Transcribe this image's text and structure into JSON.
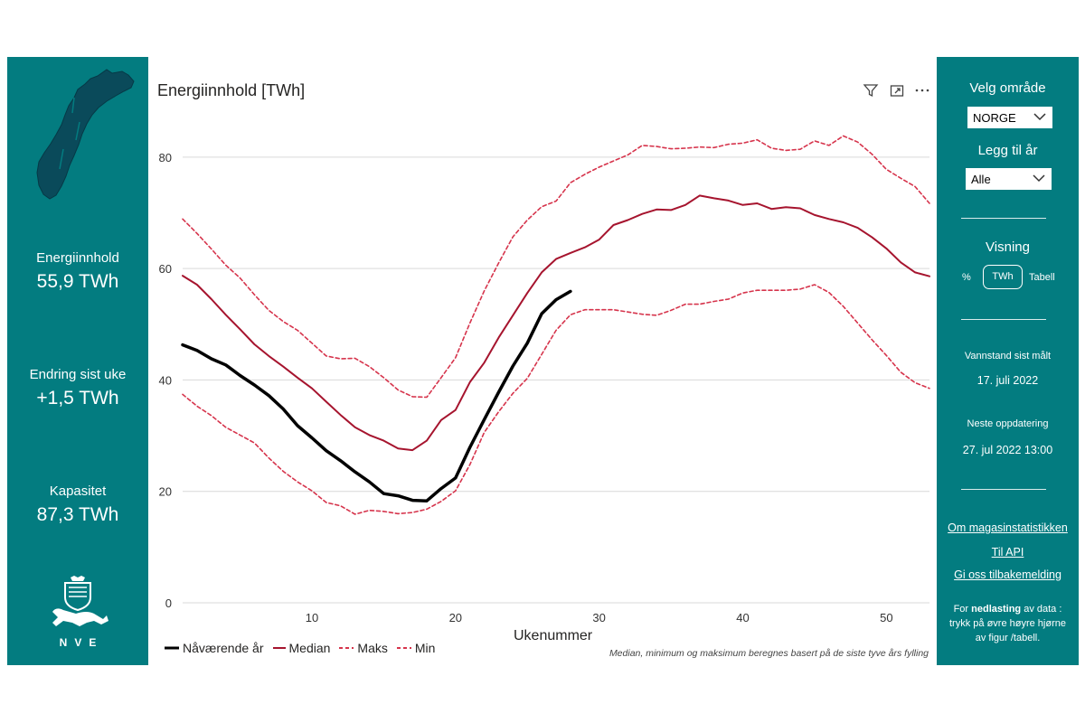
{
  "kpis": [
    {
      "label": "Energiinnhold",
      "value": "55,9 TWh"
    },
    {
      "label": "Endring sist uke",
      "value": "+1,5 TWh"
    },
    {
      "label": "Kapasitet",
      "value": "87,3 TWh"
    }
  ],
  "logo_text": "NVE",
  "chart_title": "Energiinnhold [TWh]",
  "footnote": "Median, minimum og maksimum beregnes basert på de siste tyve års fylling",
  "icons": [
    "filter-icon",
    "focus-mode-icon",
    "more-options-icon",
    "norway-map-icon",
    "nve-crest-icon",
    "chevron-down-icon"
  ],
  "colors": {
    "panel": "#037c80",
    "current": "#000000",
    "median": "#a6142e",
    "band": "#d6344c"
  },
  "right_panel": {
    "area_label": "Velg område",
    "area_value": "NORGE",
    "year_label": "Legg til år",
    "year_value": "Alle",
    "view_label": "Visning",
    "view_pct": "%",
    "view_twh": "TWh",
    "view_table": "Tabell",
    "measured_label": "Vannstand sist målt",
    "measured_date": "17. juli 2022",
    "next_label": "Neste oppdatering",
    "next_date": "27. jul 2022 13:00",
    "links": [
      "Om magasinstatistikken",
      "Til API",
      "Gi oss tilbakemelding"
    ],
    "download_note_pre": "For ",
    "download_note_bold": "nedlasting",
    "download_note_post": " av data : trykk på øvre høyre hjørne av figur /tabell."
  },
  "chart_data": {
    "type": "line",
    "title": "Energiinnhold [TWh]",
    "xlabel": "Ukenummer",
    "ylabel": "",
    "xlim": [
      1,
      53
    ],
    "ylim": [
      0,
      85
    ],
    "xticks": [
      10,
      20,
      30,
      40,
      50
    ],
    "yticks": [
      0,
      20,
      40,
      60,
      80
    ],
    "grid": "horizontal",
    "legend": "bottom-left",
    "series": [
      {
        "name": "Nåværende år",
        "style": "solid-thick",
        "color": "#000000",
        "x": [
          1,
          2,
          3,
          4,
          5,
          6,
          7,
          8,
          9,
          10,
          11,
          12,
          13,
          14,
          15,
          16,
          17,
          18,
          19,
          20,
          21,
          22,
          23,
          24,
          25,
          26,
          27,
          28
        ],
        "values": [
          46.3,
          45.3,
          43.8,
          42.7,
          40.8,
          39.1,
          37.2,
          34.8,
          31.8,
          29.6,
          27.3,
          25.5,
          23.5,
          21.7,
          19.6,
          19.2,
          18.4,
          18.3,
          20.5,
          22.4,
          27.9,
          32.9,
          37.8,
          42.5,
          46.6,
          51.9,
          54.4,
          55.9
        ]
      },
      {
        "name": "Median",
        "style": "solid",
        "color": "#a6142e",
        "x": [
          1,
          2,
          3,
          4,
          5,
          6,
          7,
          8,
          9,
          10,
          11,
          12,
          13,
          14,
          15,
          16,
          17,
          18,
          19,
          20,
          21,
          22,
          23,
          24,
          25,
          26,
          27,
          28,
          29,
          30,
          31,
          32,
          33,
          34,
          35,
          36,
          37,
          38,
          39,
          40,
          41,
          42,
          43,
          44,
          45,
          46,
          47,
          48,
          49,
          50,
          51,
          52,
          53
        ],
        "values": [
          58.7,
          57.1,
          54.5,
          51.7,
          49.1,
          46.4,
          44.3,
          42.4,
          40.4,
          38.5,
          36.1,
          33.7,
          31.5,
          30.1,
          29.1,
          27.7,
          27.4,
          29.1,
          32.8,
          34.6,
          39.6,
          43.1,
          47.6,
          51.6,
          55.6,
          59.3,
          61.7,
          62.8,
          63.8,
          65.2,
          67.8,
          68.7,
          69.8,
          70.6,
          70.5,
          71.4,
          73.1,
          72.6,
          72.2,
          71.4,
          71.7,
          70.7,
          71.0,
          70.8,
          69.6,
          68.9,
          68.3,
          67.3,
          65.6,
          63.6,
          61.1,
          59.3,
          58.6
        ]
      },
      {
        "name": "Maks",
        "style": "dashed",
        "color": "#d6344c",
        "x": [
          1,
          2,
          3,
          4,
          5,
          6,
          7,
          8,
          9,
          10,
          11,
          12,
          13,
          14,
          15,
          16,
          17,
          18,
          19,
          20,
          21,
          22,
          23,
          24,
          25,
          26,
          27,
          28,
          29,
          30,
          31,
          32,
          33,
          34,
          35,
          36,
          37,
          38,
          39,
          40,
          41,
          42,
          43,
          44,
          45,
          46,
          47,
          48,
          49,
          50,
          51,
          52,
          53
        ],
        "values": [
          68.9,
          66.3,
          63.5,
          60.6,
          58.3,
          55.3,
          52.5,
          50.5,
          48.9,
          46.6,
          44.3,
          43.8,
          43.9,
          42.4,
          40.4,
          38.2,
          37.0,
          36.9,
          40.4,
          44.0,
          50.2,
          56.0,
          61.0,
          65.7,
          68.7,
          71.1,
          72.1,
          75.4,
          76.9,
          78.2,
          79.3,
          80.4,
          82.1,
          81.9,
          81.5,
          81.6,
          81.8,
          81.7,
          82.3,
          82.5,
          83.1,
          81.6,
          81.2,
          81.4,
          82.9,
          82.1,
          83.8,
          82.7,
          80.5,
          77.8,
          76.2,
          74.7,
          71.7
        ]
      },
      {
        "name": "Min",
        "style": "dashed",
        "color": "#d6344c",
        "x": [
          1,
          2,
          3,
          4,
          5,
          6,
          7,
          8,
          9,
          10,
          11,
          12,
          13,
          14,
          15,
          16,
          17,
          18,
          19,
          20,
          21,
          22,
          23,
          24,
          25,
          26,
          27,
          28,
          29,
          30,
          31,
          32,
          33,
          34,
          35,
          36,
          37,
          38,
          39,
          40,
          41,
          42,
          43,
          44,
          45,
          46,
          47,
          48,
          49,
          50,
          51,
          52,
          53
        ],
        "values": [
          37.4,
          35.3,
          33.6,
          31.5,
          30.1,
          28.7,
          26.0,
          23.6,
          21.7,
          20.1,
          18.0,
          17.4,
          15.9,
          16.6,
          16.4,
          16.0,
          16.2,
          16.8,
          18.2,
          20.1,
          24.8,
          30.6,
          34.3,
          37.6,
          40.3,
          44.6,
          48.9,
          51.7,
          52.6,
          52.6,
          52.6,
          52.2,
          51.8,
          51.6,
          52.5,
          53.6,
          53.6,
          54.1,
          54.5,
          55.6,
          56.1,
          56.1,
          56.1,
          56.3,
          57.1,
          55.7,
          53.2,
          50.2,
          47.2,
          44.4,
          41.4,
          39.5,
          38.5
        ]
      }
    ]
  }
}
